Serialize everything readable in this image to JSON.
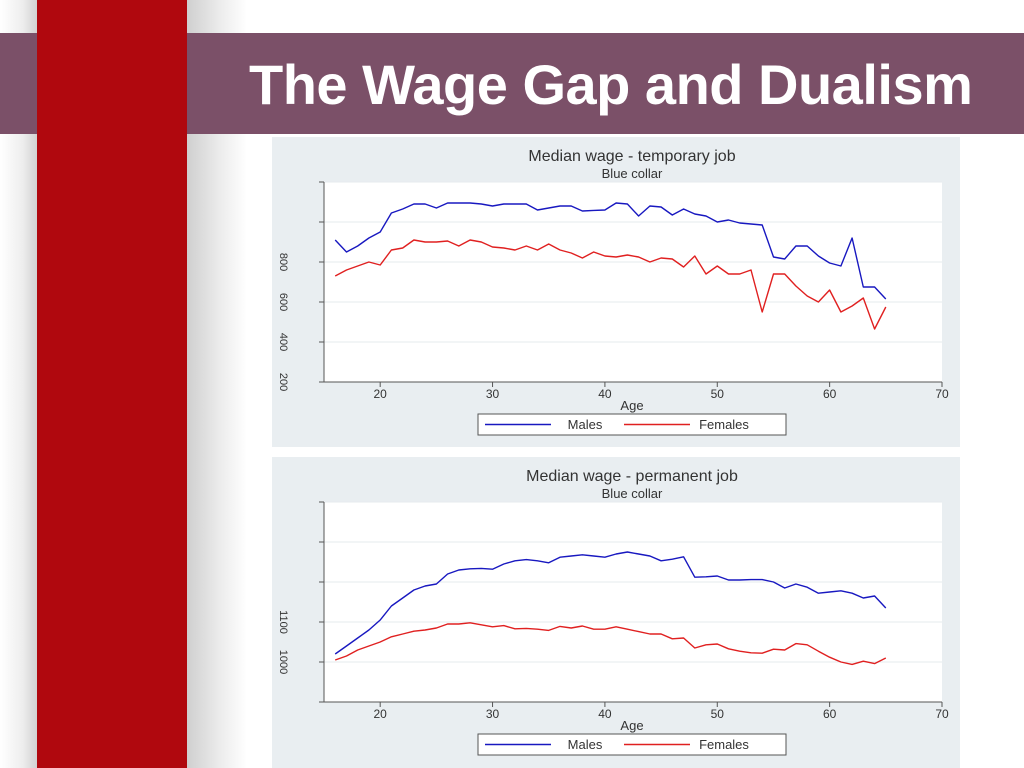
{
  "slide": {
    "title": "The Wage Gap and Dualism",
    "colors": {
      "band": "#b0080e",
      "title_bar": "#7b5068",
      "panel": "#e9eef1",
      "males": "#1818c0",
      "females": "#e02020"
    }
  },
  "chart_data": [
    {
      "type": "line",
      "title": "Median wage - temporary job",
      "subtitle": "Blue collar",
      "xlabel": "Age",
      "ylabel": "",
      "xlim": [
        15,
        70
      ],
      "xticks": [
        20,
        30,
        40,
        50,
        60,
        70
      ],
      "ylim": [
        200,
        1200
      ],
      "yticks": [
        200,
        400,
        600,
        800,
        1000,
        1200
      ],
      "ytick_labels": [
        "200",
        "400",
        "600",
        "800",
        "",
        ""
      ],
      "grid": true,
      "legend_position": "bottom",
      "x": [
        16,
        17,
        18,
        19,
        20,
        21,
        22,
        23,
        24,
        25,
        26,
        27,
        28,
        29,
        30,
        31,
        32,
        33,
        34,
        35,
        36,
        37,
        38,
        39,
        40,
        41,
        42,
        43,
        44,
        45,
        46,
        47,
        48,
        49,
        50,
        51,
        52,
        53,
        54,
        55,
        56,
        57,
        58,
        59,
        60,
        61,
        62,
        63,
        64,
        65
      ],
      "series": [
        {
          "name": "Males",
          "color": "#1818c0",
          "values": [
            910,
            850,
            880,
            920,
            950,
            1045,
            1065,
            1090,
            1090,
            1070,
            1095,
            1095,
            1095,
            1090,
            1080,
            1090,
            1090,
            1090,
            1060,
            1070,
            1080,
            1080,
            1055,
            1058,
            1060,
            1095,
            1090,
            1030,
            1080,
            1075,
            1035,
            1065,
            1040,
            1030,
            1000,
            1010,
            995,
            990,
            985,
            825,
            815,
            880,
            880,
            830,
            795,
            780,
            920,
            675,
            675,
            615
          ]
        },
        {
          "name": "Females",
          "color": "#e02020",
          "values": [
            730,
            760,
            780,
            800,
            785,
            860,
            870,
            910,
            900,
            900,
            905,
            880,
            910,
            900,
            875,
            870,
            860,
            880,
            860,
            890,
            860,
            845,
            820,
            850,
            830,
            825,
            835,
            825,
            800,
            820,
            815,
            775,
            830,
            740,
            780,
            740,
            740,
            760,
            550,
            740,
            740,
            680,
            630,
            600,
            660,
            550,
            580,
            620,
            465,
            575
          ]
        }
      ]
    },
    {
      "type": "line",
      "title": "Median wage - permanent job",
      "subtitle": "Blue collar",
      "xlabel": "Age",
      "ylabel": "",
      "xlim": [
        15,
        70
      ],
      "xticks": [
        20,
        30,
        40,
        50,
        60,
        70
      ],
      "ylim": [
        900,
        1400
      ],
      "yticks": [
        900,
        1000,
        1100,
        1200,
        1300,
        1400
      ],
      "ytick_labels": [
        "",
        "1000",
        "1100",
        "",
        "",
        ""
      ],
      "grid": true,
      "legend_position": "bottom",
      "x": [
        16,
        17,
        18,
        19,
        20,
        21,
        22,
        23,
        24,
        25,
        26,
        27,
        28,
        29,
        30,
        31,
        32,
        33,
        34,
        35,
        36,
        37,
        38,
        39,
        40,
        41,
        42,
        43,
        44,
        45,
        46,
        47,
        48,
        49,
        50,
        51,
        52,
        53,
        54,
        55,
        56,
        57,
        58,
        59,
        60,
        61,
        62,
        63,
        64,
        65
      ],
      "series": [
        {
          "name": "Males",
          "color": "#1818c0",
          "values": [
            1020,
            1040,
            1060,
            1080,
            1105,
            1140,
            1160,
            1180,
            1190,
            1195,
            1220,
            1230,
            1233,
            1234,
            1232,
            1245,
            1253,
            1256,
            1253,
            1248,
            1262,
            1265,
            1268,
            1265,
            1262,
            1270,
            1275,
            1270,
            1265,
            1253,
            1257,
            1263,
            1212,
            1213,
            1215,
            1205,
            1205,
            1206,
            1206,
            1200,
            1185,
            1195,
            1187,
            1172,
            1175,
            1178,
            1172,
            1160,
            1165,
            1135
          ]
        },
        {
          "name": "Females",
          "color": "#e02020",
          "values": [
            1005,
            1015,
            1030,
            1040,
            1050,
            1063,
            1070,
            1077,
            1080,
            1085,
            1095,
            1095,
            1098,
            1093,
            1088,
            1091,
            1083,
            1084,
            1082,
            1079,
            1089,
            1085,
            1090,
            1082,
            1082,
            1088,
            1082,
            1076,
            1070,
            1070,
            1058,
            1060,
            1035,
            1043,
            1045,
            1033,
            1027,
            1023,
            1022,
            1032,
            1030,
            1046,
            1043,
            1027,
            1012,
            1000,
            994,
            1002,
            996,
            1010
          ]
        }
      ]
    }
  ]
}
